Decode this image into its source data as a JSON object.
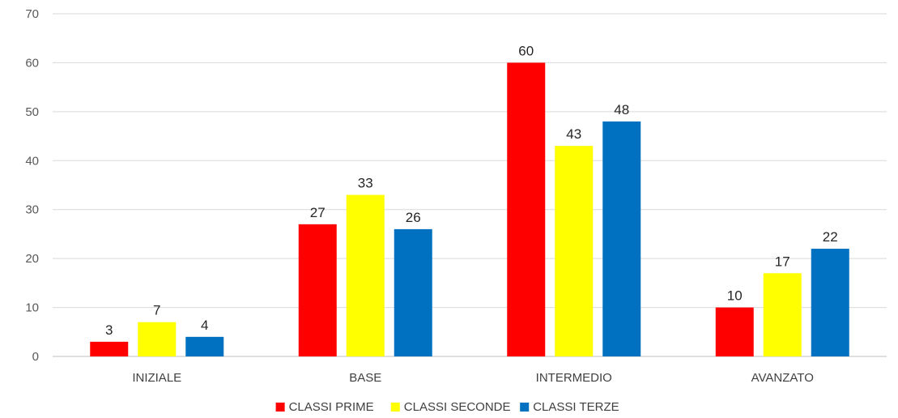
{
  "chart_data": {
    "type": "bar",
    "title": "",
    "xlabel": "",
    "ylabel": "",
    "categories": [
      "INIZIALE",
      "BASE",
      "INTERMEDIO",
      "AVANZATO"
    ],
    "series": [
      {
        "name": "CLASSI PRIME",
        "color": "#ff0000",
        "values": [
          3,
          27,
          60,
          10
        ]
      },
      {
        "name": "CLASSI SECONDE",
        "color": "#ffff00",
        "values": [
          7,
          33,
          43,
          17
        ]
      },
      {
        "name": "CLASSI TERZE",
        "color": "#0070c0",
        "values": [
          4,
          26,
          48,
          22
        ]
      }
    ],
    "ylim": [
      0,
      70
    ],
    "yticks": [
      0,
      10,
      20,
      30,
      40,
      50,
      60,
      70
    ],
    "grid": true,
    "data_labels": true,
    "legend_position": "bottom"
  }
}
